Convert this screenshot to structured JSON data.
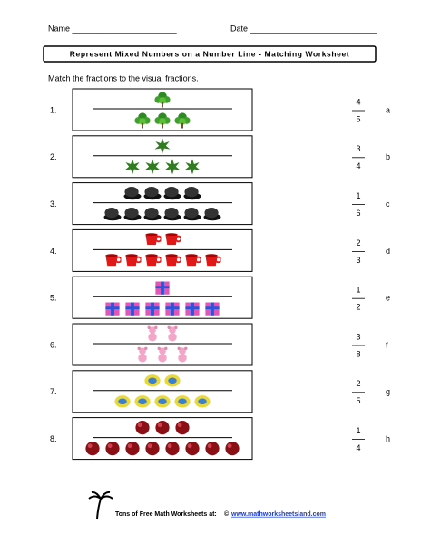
{
  "header": {
    "name": "Name _______________________",
    "date": "Date ____________________________",
    "title": "Represent Mixed Numbers on a Number Line - Matching Worksheet"
  },
  "instructions": "Match the fractions to the visual fractions.",
  "problems": [
    "1.",
    "2.",
    "3.",
    "4.",
    "5.",
    "6.",
    "7.",
    "8."
  ],
  "answers": [
    {
      "numerator": 4,
      "denominator": 5,
      "letter": "a"
    },
    {
      "numerator": 3,
      "denominator": 4,
      "letter": "b"
    },
    {
      "numerator": 1,
      "denominator": 6,
      "letter": "c"
    },
    {
      "numerator": 2,
      "denominator": 3,
      "letter": "d"
    },
    {
      "numerator": 1,
      "denominator": 2,
      "letter": "e"
    },
    {
      "numerator": 3,
      "denominator": 8,
      "letter": "f"
    },
    {
      "numerator": 2,
      "denominator": 5,
      "letter": "g"
    },
    {
      "numerator": 1,
      "denominator": 4,
      "letter": "h"
    }
  ],
  "footer": {
    "text": "Tons of Free Math Worksheets at:",
    "copyright": "©",
    "url": "www.mathworksheetsland.com"
  }
}
